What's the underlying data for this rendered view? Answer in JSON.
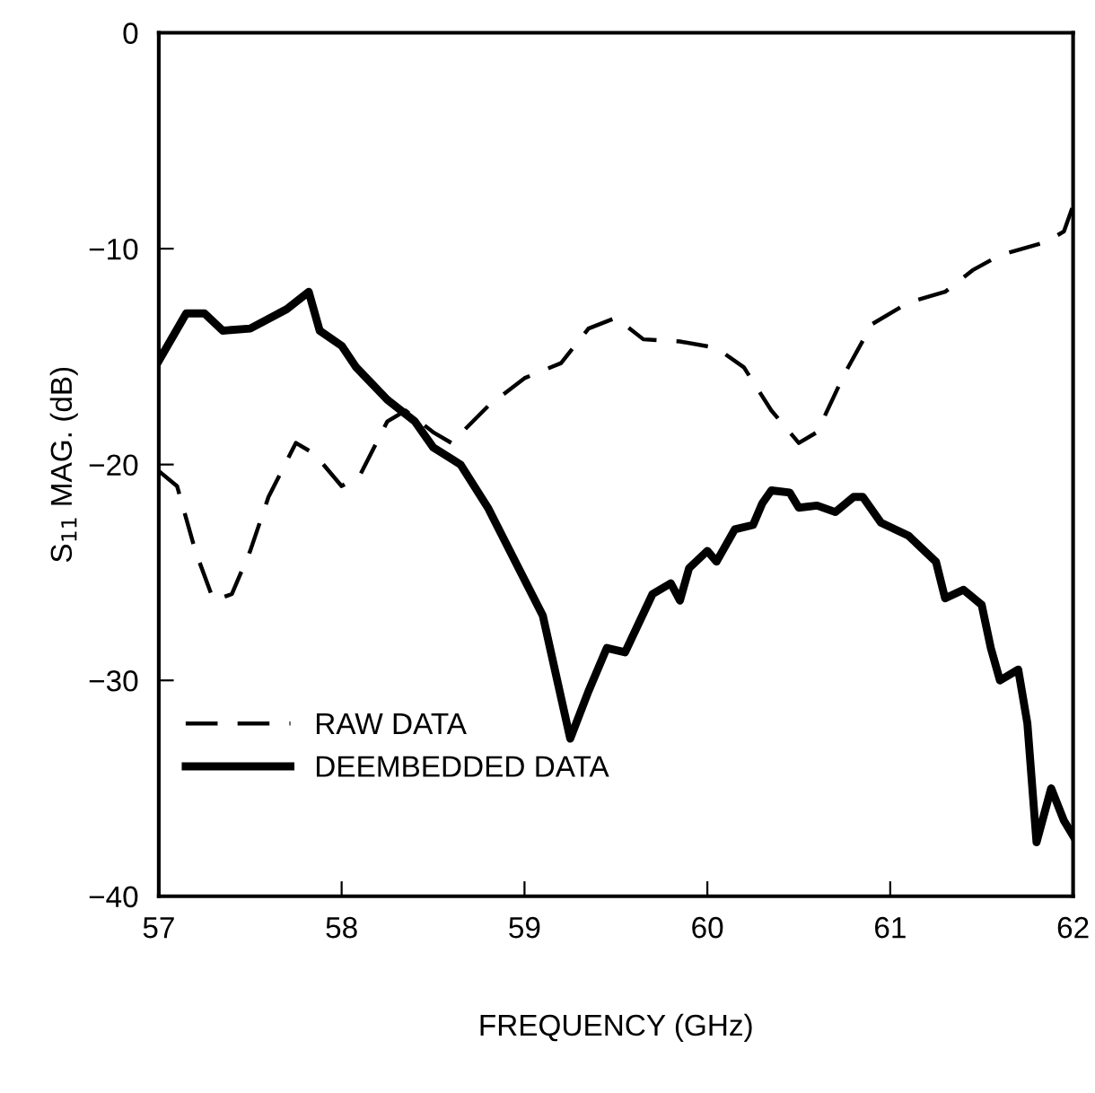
{
  "chart_data": {
    "type": "line",
    "xlabel": "FREQUENCY (GHz)",
    "ylabel": "S$_{11}$ MAG. (dB)",
    "xlim": [
      57,
      62
    ],
    "ylim": [
      -40,
      0
    ],
    "xticks": [
      57,
      58,
      59,
      60,
      61,
      62
    ],
    "yticks": [
      0,
      {
        "value": -10,
        "label": "−10"
      },
      {
        "value": -20,
        "label": "−20"
      },
      {
        "value": -30,
        "label": "−30"
      },
      {
        "value": -40,
        "label": "−40"
      }
    ],
    "grid": false,
    "legend": "bottom left",
    "marker": "none",
    "series": [
      {
        "name": "RAW DATA",
        "color": "#000000",
        "line_style": "dashed",
        "x": [
          57.0,
          57.1,
          57.2,
          57.3,
          57.4,
          57.5,
          57.6,
          57.75,
          57.85,
          58.0,
          58.1,
          58.25,
          58.35,
          58.5,
          58.6,
          58.8,
          59.0,
          59.2,
          59.35,
          59.5,
          59.65,
          59.85,
          60.05,
          60.2,
          60.35,
          60.5,
          60.6,
          60.75,
          60.9,
          61.1,
          61.3,
          61.45,
          61.6,
          61.85,
          61.95,
          62.0
        ],
        "values": [
          -20.3,
          -21,
          -24,
          -26.3,
          -26,
          -24,
          -21.5,
          -19,
          -19.5,
          -21,
          -20.5,
          -18,
          -17.5,
          -18.5,
          -19,
          -17.3,
          -16,
          -15.3,
          -13.7,
          -13.2,
          -14.2,
          -14.3,
          -14.6,
          -15.5,
          -17.5,
          -19,
          -18.5,
          -15.8,
          -13.5,
          -12.5,
          -12,
          -11,
          -10.3,
          -9.7,
          -9.2,
          -8
        ]
      },
      {
        "name": "DEEMBEDDED DATA",
        "color": "#000000",
        "line_style": "solid",
        "x": [
          57.0,
          57.15,
          57.25,
          57.35,
          57.5,
          57.7,
          57.82,
          57.88,
          58.0,
          58.08,
          58.25,
          58.4,
          58.5,
          58.65,
          58.8,
          58.95,
          59.1,
          59.25,
          59.35,
          59.45,
          59.55,
          59.7,
          59.8,
          59.85,
          59.9,
          60.0,
          60.05,
          60.15,
          60.25,
          60.3,
          60.35,
          60.45,
          60.5,
          60.6,
          60.7,
          60.8,
          60.85,
          60.95,
          61.1,
          61.25,
          61.3,
          61.4,
          61.5,
          61.55,
          61.6,
          61.7,
          61.75,
          61.8,
          61.88,
          61.95,
          62.0
        ],
        "values": [
          -15.2,
          -13,
          -13,
          -13.8,
          -13.7,
          -12.8,
          -12,
          -13.8,
          -14.5,
          -15.5,
          -17,
          -18,
          -19.2,
          -20,
          -22,
          -24.5,
          -27,
          -32.7,
          -30.5,
          -28.5,
          -28.7,
          -26,
          -25.5,
          -26.3,
          -24.8,
          -24,
          -24.5,
          -23,
          -22.8,
          -21.8,
          -21.2,
          -21.3,
          -22,
          -21.9,
          -22.2,
          -21.5,
          -21.5,
          -22.7,
          -23.3,
          -24.5,
          -26.2,
          -25.8,
          -26.5,
          -28.5,
          -30,
          -29.5,
          -32,
          -37.5,
          -35,
          -36.5,
          -37.2
        ]
      }
    ]
  }
}
